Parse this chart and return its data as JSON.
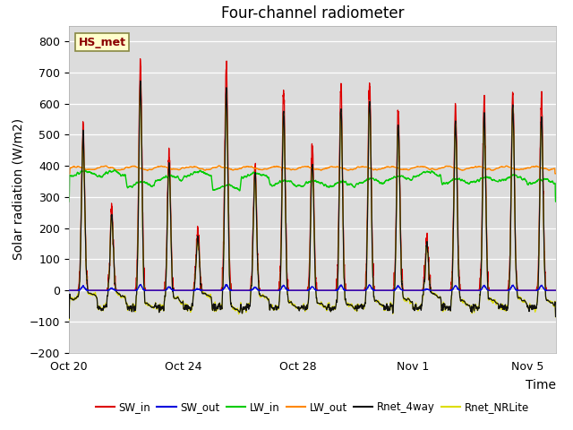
{
  "title": "Four-channel radiometer",
  "xlabel": "Time",
  "ylabel": "Solar radiation (W/m2)",
  "ylim": [
    -200,
    850
  ],
  "yticks": [
    -200,
    -100,
    0,
    100,
    200,
    300,
    400,
    500,
    600,
    700,
    800
  ],
  "x_tick_labels": [
    "Oct 20",
    "Oct 24",
    "Oct 28",
    "Nov 1",
    "Nov 5"
  ],
  "x_tick_positions": [
    0,
    4,
    8,
    12,
    16
  ],
  "num_days": 17,
  "legend_labels": [
    "SW_in",
    "SW_out",
    "LW_in",
    "LW_out",
    "Rnet_4way",
    "Rnet_NRLite"
  ],
  "legend_colors": [
    "#dd0000",
    "#0000dd",
    "#00cc00",
    "#ff8800",
    "#111111",
    "#dddd00"
  ],
  "annotation_text": "HS_met",
  "bg_color": "#dcdcdc",
  "title_fontsize": 12,
  "label_fontsize": 10,
  "tick_fontsize": 9
}
